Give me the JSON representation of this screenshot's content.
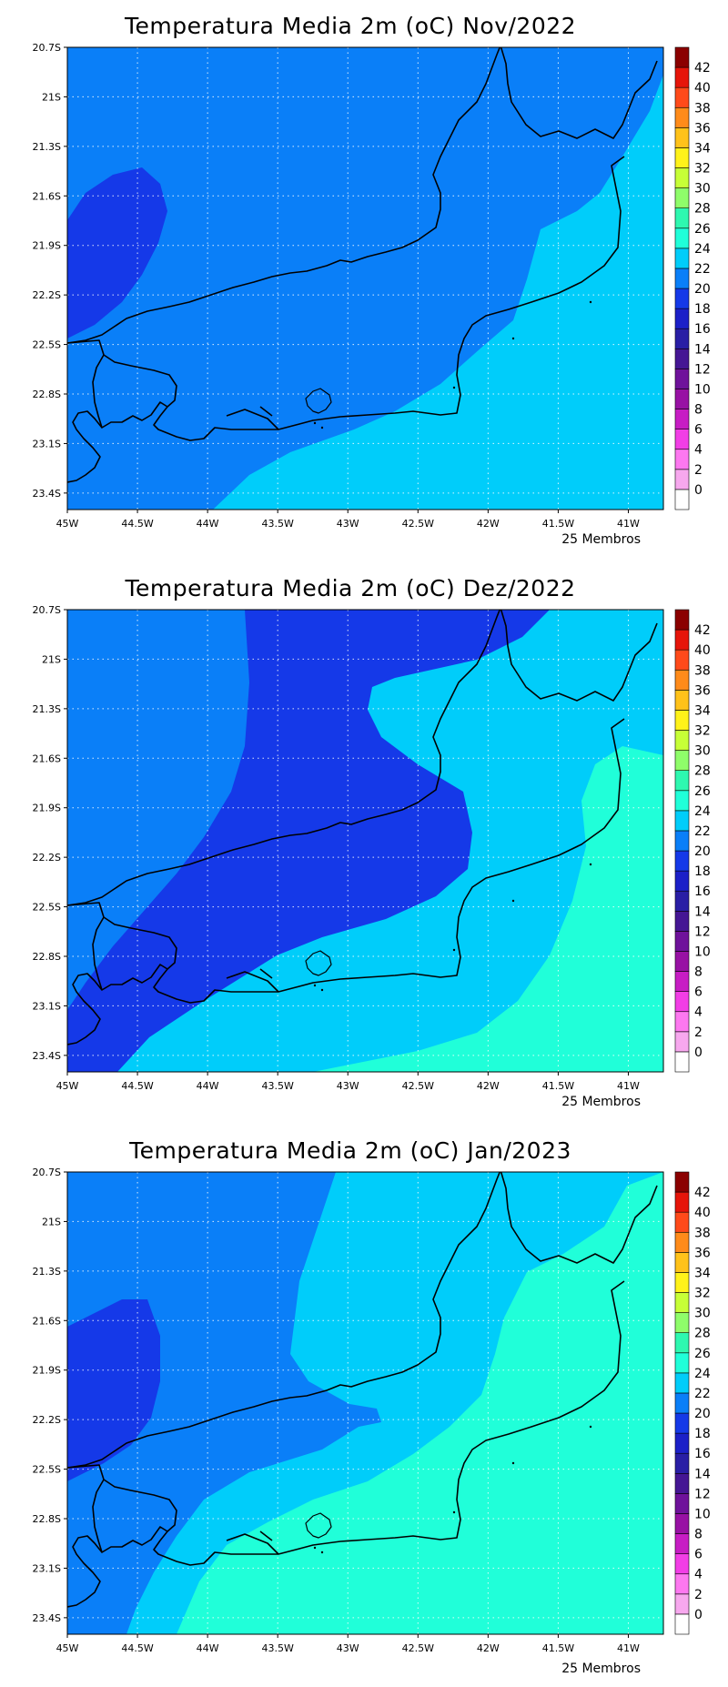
{
  "panels": [
    {
      "title": "Temperatura Media 2m (oC) Nov/2022",
      "footnote": "25 Membros",
      "regions": [
        {
          "level": 20,
          "color": "#0a7ff8"
        },
        {
          "level": 18,
          "color": "#1539e8"
        },
        {
          "level": 22,
          "color": "#00cdfa"
        }
      ]
    },
    {
      "title": "Temperatura Media 2m (oC) Dez/2022",
      "footnote": "25 Membros",
      "regions": [
        {
          "level": 18,
          "color": "#1539e8"
        },
        {
          "level": 20,
          "color": "#0a7ff8"
        },
        {
          "level": 22,
          "color": "#00cdfa"
        },
        {
          "level": 24,
          "color": "#20ffd9"
        }
      ]
    },
    {
      "title": "Temperatura Media 2m (oC) Jan/2023",
      "footnote": "25 Membros",
      "regions": [
        {
          "level": 20,
          "color": "#0a7ff8"
        },
        {
          "level": 18,
          "color": "#1539e8"
        },
        {
          "level": 22,
          "color": "#00cdfa"
        },
        {
          "level": 24,
          "color": "#20ffd9"
        }
      ]
    }
  ],
  "axes": {
    "lat_ticks": [
      "20.7S",
      "21S",
      "21.3S",
      "21.6S",
      "21.9S",
      "22.2S",
      "22.5S",
      "22.8S",
      "23.1S",
      "23.4S"
    ],
    "lon_ticks": [
      "45W",
      "44.5W",
      "44W",
      "43.5W",
      "43W",
      "42.5W",
      "42W",
      "41.5W",
      "41W"
    ],
    "lat_range": [
      -23.5,
      -20.7
    ],
    "lon_range": [
      -45,
      -40.75
    ],
    "grid": "dotted"
  },
  "colorbar": {
    "labels": [
      "0",
      "2",
      "4",
      "6",
      "8",
      "10",
      "12",
      "14",
      "16",
      "18",
      "20",
      "22",
      "24",
      "26",
      "28",
      "30",
      "32",
      "34",
      "36",
      "38",
      "40",
      "42"
    ],
    "colors": [
      "#ffffff",
      "#f7a8ee",
      "#fd78f0",
      "#f23ee6",
      "#c71dc4",
      "#9811a4",
      "#6f129b",
      "#451694",
      "#291ea5",
      "#1c20c8",
      "#1539e8",
      "#0a7ff8",
      "#00cdfa",
      "#20ffd9",
      "#2ef8b0",
      "#8ffd6a",
      "#c7ff37",
      "#fff21a",
      "#ffc21a",
      "#ff8b1a",
      "#ff4a1a",
      "#e6150a",
      "#8b0000"
    ]
  }
}
